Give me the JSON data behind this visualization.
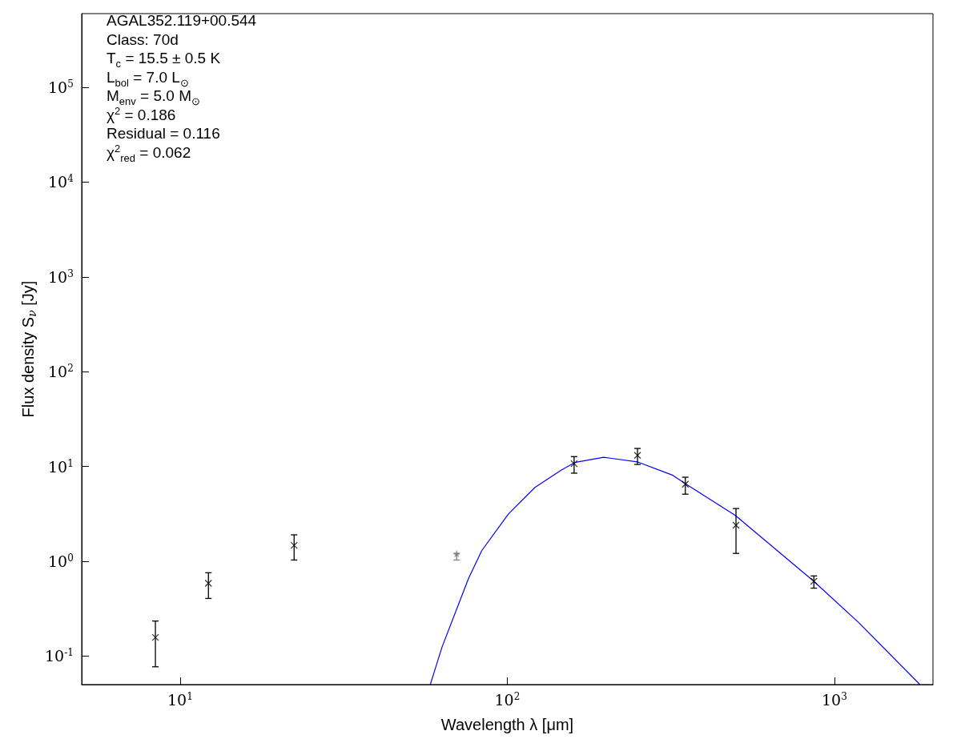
{
  "chart_data": {
    "type": "scatter",
    "xlabel": "Wavelength λ [μm]",
    "ylabel": "Flux density S$_{ν}$ [Jy]",
    "annotations": [
      "AGAL352.119+00.544",
      "Class: 70d",
      "T$_{c}$ = 15.5 ± 0.5 K",
      "L$_{bol}$ = 7.0 L$_{⊙}$",
      "M$_{env}$ = 5.0 M$_{⊙}$",
      "χ$^{2}$ = 0.186",
      "Residual = 0.116",
      "χ$^{2}$$_{red}$ = 0.062"
    ],
    "log": "xy",
    "xlim": [
      5,
      2000
    ],
    "xticks": [
      {
        "value": 10,
        "label": "10$^{1}$"
      },
      {
        "value": 100,
        "label": "10$^{2}$"
      },
      {
        "value": 1000,
        "label": "10$^{3}$"
      }
    ],
    "ylim": [
      0.05,
      600000
    ],
    "yticks": [
      {
        "value": 0.1,
        "label": "10$^{-1}$"
      },
      {
        "value": 1,
        "label": "10$^{0}$"
      },
      {
        "value": 10,
        "label": "10$^{1}$"
      },
      {
        "value": 100,
        "label": "10$^{2}$"
      },
      {
        "value": 1000,
        "label": "10$^{3}$"
      },
      {
        "value": 10000,
        "label": "10$^{4}$"
      },
      {
        "value": 100000,
        "label": "10$^{5}$"
      }
    ],
    "grid": false,
    "series": [
      {
        "color": "#000000",
        "marker": "cross",
        "x": [
          8.4,
          12.2,
          22.3,
          160,
          250,
          350,
          500,
          865
        ],
        "values": [
          0.157,
          0.586,
          1.47,
          10.7,
          13.1,
          6.5,
          2.4,
          0.615
        ],
        "errors": [
          [
            0.077,
            0.234
          ],
          [
            0.405,
            0.756
          ],
          [
            1.03,
            1.9
          ],
          [
            8.5,
            12.7
          ],
          [
            10.5,
            15.5
          ],
          [
            5.1,
            7.7
          ],
          [
            1.21,
            3.6
          ],
          [
            0.52,
            0.7
          ]
        ]
      },
      {
        "color": "#808080",
        "marker": "star",
        "x": [
          70
        ],
        "values": [
          1.2
        ],
        "errors": [
          [
            1.03,
            1.2
          ]
        ]
      },
      {
        "type": "line",
        "color": "#0000ff",
        "marker": "none",
        "line_style": "solid",
        "x": [
          58.2,
          60.3,
          63.2,
          76.1,
          83.6,
          100.7,
          121.5,
          146.4,
          160.7,
          197,
          249.5,
          320.6,
          349,
          497.6,
          863,
          1186,
          1820
        ],
        "values": [
          0.0505,
          0.0746,
          0.125,
          0.659,
          1.3,
          3.14,
          6.02,
          9.18,
          11.0,
          12.5,
          11.2,
          8.07,
          6.64,
          3.04,
          0.618,
          0.225,
          0.0505
        ]
      }
    ]
  }
}
